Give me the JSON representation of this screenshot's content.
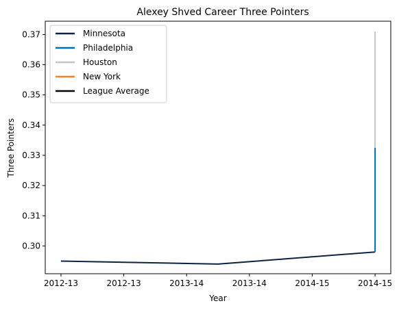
{
  "chart_data": {
    "type": "line",
    "title": "Alexey Shved Career Three Pointers",
    "xlabel": "Year",
    "ylabel": "Three Pointers",
    "x_tick_labels": [
      "2012-13",
      "2012-13",
      "2013-14",
      "2013-14",
      "2014-15",
      "2014-15"
    ],
    "x_tick_values": [
      0,
      0.4,
      0.8,
      1.2,
      1.6,
      2.0
    ],
    "xlim": [
      -0.1,
      2.1
    ],
    "ylim": [
      0.2908,
      0.3744
    ],
    "y_ticks": [
      0.3,
      0.31,
      0.32,
      0.33,
      0.34,
      0.35,
      0.36,
      0.37
    ],
    "y_tick_labels": [
      "0.30",
      "0.31",
      "0.32",
      "0.33",
      "0.34",
      "0.35",
      "0.36",
      "0.37"
    ],
    "grid": false,
    "legend_position": "upper-left",
    "series": [
      {
        "name": "Minnesota",
        "color": "#0c2340",
        "x": [
          0,
          1,
          2
        ],
        "y": [
          0.295,
          0.294,
          0.298
        ]
      },
      {
        "name": "Philadelphia",
        "color": "#006bb6",
        "x": [
          2,
          2
        ],
        "y": [
          0.298,
          0.3325
        ]
      },
      {
        "name": "Houston",
        "color": "#c4c4c4",
        "x": [
          2,
          2
        ],
        "y": [
          0.3325,
          0.371
        ]
      },
      {
        "name": "New York",
        "color": "#f58426",
        "x": [],
        "y": []
      },
      {
        "name": "League Average",
        "color": "#000000",
        "x": [],
        "y": []
      }
    ]
  }
}
